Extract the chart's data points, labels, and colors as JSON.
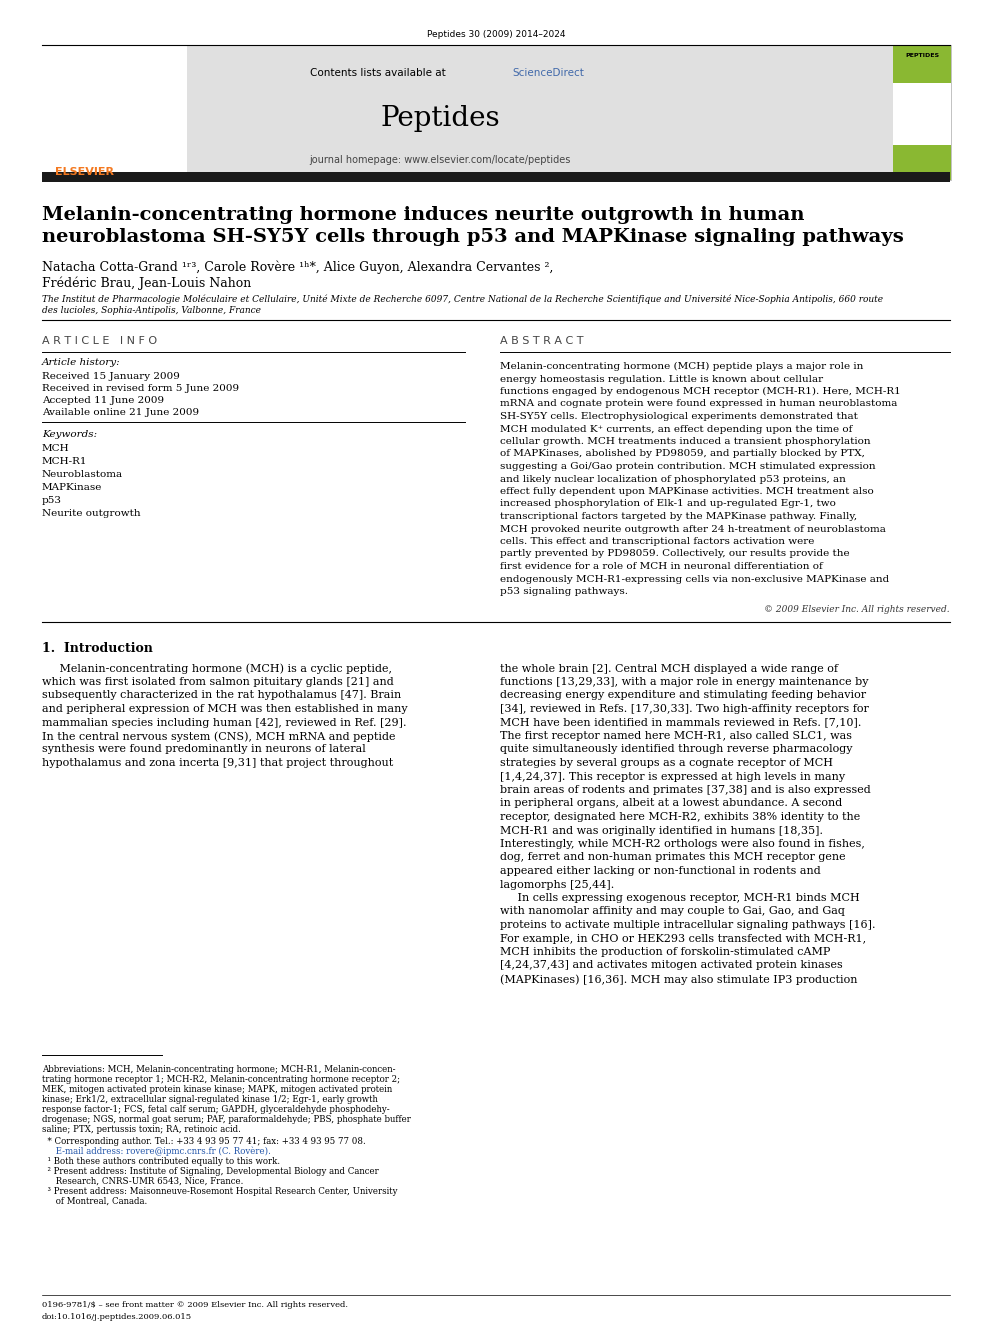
{
  "page_width": 9.92,
  "page_height": 13.23,
  "dpi": 100,
  "bg_color": "#ffffff",
  "top_journal_info": "Peptides 30 (2009) 2014–2024",
  "journal_name": "Peptides",
  "journal_homepage": "journal homepage: www.elsevier.com/locate/peptides",
  "contents_line": "Contents lists available at ",
  "sciencedirect_word": "ScienceDirect",
  "sciencedirect_color": "#4169aa",
  "title_line1": "Melanin-concentrating hormone induces neurite outgrowth in human",
  "title_line2": "neuroblastoma SH-SY5Y cells through p53 and MAPKinase signaling pathways",
  "authors_line1": "Natacha Cotta-Grand ¹ʳ³, Carole Rovère ¹ʰ*, Alice Guyon, Alexandra Cervantes ²,",
  "authors_line2": "Frédéric Brau, Jean-Louis Nahon",
  "affiliation_line1": "The Institut de Pharmacologie Moléculaire et Cellulaire, Unité Mixte de Recherche 6097, Centre National de la Recherche Scientifique and Université Nice-Sophia Antipolis, 660 route",
  "affiliation_line2": "des lucioles, Sophia-Antipolis, Valbonne, France",
  "article_info_header": "A R T I C L E   I N F O",
  "abstract_header": "A B S T R A C T",
  "article_history_label": "Article history:",
  "received1": "Received 15 January 2009",
  "received2": "Received in revised form 5 June 2009",
  "accepted": "Accepted 11 June 2009",
  "available": "Available online 21 June 2009",
  "keywords_label": "Keywords:",
  "keywords": [
    "MCH",
    "MCH-R1",
    "Neuroblastoma",
    "MAPKinase",
    "p53",
    "Neurite outgrowth"
  ],
  "abstract_text": "Melanin-concentrating hormone (MCH) peptide plays a major role in energy homeostasis regulation. Little is known about cellular functions engaged by endogenous MCH receptor (MCH-R1). Here, MCH-R1 mRNA and cognate protein were found expressed in human neuroblastoma SH-SY5Y cells. Electrophysiological experiments demonstrated that MCH modulated K⁺ currents, an effect depending upon the time of cellular growth. MCH treatments induced a transient phosphorylation of MAPKinases, abolished by PD98059, and partially blocked by PTX, suggesting a Goi/Gao protein contribution. MCH stimulated expression and likely nuclear localization of phosphorylated p53 proteins, an effect fully dependent upon MAPKinase activities. MCH treatment also increased phosphorylation of Elk-1 and up-regulated Egr-1, two transcriptional factors targeted by the MAPKinase pathway. Finally, MCH provoked neurite outgrowth after 24 h-treatment of neuroblastoma cells. This effect and transcriptional factors activation were partly prevented by PD98059. Collectively, our results provide the first evidence for a role of MCH in neuronal differentiation of endogenously MCH-R1-expressing cells via non-exclusive MAPKinase and p53 signaling pathways.",
  "copyright_line": "© 2009 Elsevier Inc. All rights reserved.",
  "intro_header": "1.  Introduction",
  "intro_col1_lines": [
    "     Melanin-concentrating hormone (MCH) is a cyclic peptide,",
    "which was first isolated from salmon pituitary glands [21] and",
    "subsequently characterized in the rat hypothalamus [47]. Brain",
    "and peripheral expression of MCH was then established in many",
    "mammalian species including human [42], reviewed in Ref. [29].",
    "In the central nervous system (CNS), MCH mRNA and peptide",
    "synthesis were found predominantly in neurons of lateral",
    "hypothalamus and zona incerta [9,31] that project throughout"
  ],
  "intro_col2_lines": [
    "the whole brain [2]. Central MCH displayed a wide range of",
    "functions [13,29,33], with a major role in energy maintenance by",
    "decreasing energy expenditure and stimulating feeding behavior",
    "[34], reviewed in Refs. [17,30,33]. Two high-affinity receptors for",
    "MCH have been identified in mammals reviewed in Refs. [7,10].",
    "The first receptor named here MCH-R1, also called SLC1, was",
    "quite simultaneously identified through reverse pharmacology",
    "strategies by several groups as a cognate receptor of MCH",
    "[1,4,24,37]. This receptor is expressed at high levels in many",
    "brain areas of rodents and primates [37,38] and is also expressed",
    "in peripheral organs, albeit at a lowest abundance. A second",
    "receptor, designated here MCH-R2, exhibits 38% identity to the",
    "MCH-R1 and was originally identified in humans [18,35].",
    "Interestingly, while MCH-R2 orthologs were also found in fishes,",
    "dog, ferret and non-human primates this MCH receptor gene",
    "appeared either lacking or non-functional in rodents and",
    "lagomorphs [25,44].",
    "     In cells expressing exogenous receptor, MCH-R1 binds MCH",
    "with nanomolar affinity and may couple to Gai, Gao, and Gaq",
    "proteins to activate multiple intracellular signaling pathways [16].",
    "For example, in CHO or HEK293 cells transfected with MCH-R1,",
    "MCH inhibits the production of forskolin-stimulated cAMP",
    "[4,24,37,43] and activates mitogen activated protein kinases",
    "(MAPKinases) [16,36]. MCH may also stimulate IP3 production"
  ],
  "footnote_abbrev_lines": [
    "Abbreviations: MCH, Melanin-concentrating hormone; MCH-R1, Melanin-concen-",
    "trating hormone receptor 1; MCH-R2, Melanin-concentrating hormone receptor 2;",
    "MEK, mitogen activated protein kinase kinase; MAPK, mitogen activated protein",
    "kinase; Erk1/2, extracellular signal-regulated kinase 1/2; Egr-1, early growth",
    "response factor-1; FCS, fetal calf serum; GAPDH, glyceraldehyde phosphodehy-",
    "drogenase; NGS, normal goat serum; PAF, paraformaldehyde; PBS, phosphate buffer",
    "saline; PTX, pertussis toxin; RA, retinoic acid."
  ],
  "footnote_star": "  * Corresponding author. Tel.: +33 4 93 95 77 41; fax: +33 4 93 95 77 08.",
  "footnote_email": "     E-mail address: rovere@ipmc.cnrs.fr (C. Rovère).",
  "footnote_dagger1": "  ¹ Both these authors contributed equally to this work.",
  "footnote_2": "  ² Present address: Institute of Signaling, Developmental Biology and Cancer",
  "footnote_2b": "     Research, CNRS-UMR 6543, Nice, France.",
  "footnote_3": "  ³ Present address: Maisonneuve-Rosemont Hospital Research Center, University",
  "footnote_3b": "     of Montreal, Canada.",
  "bottom_line1": "0196-9781/$ – see front matter © 2009 Elsevier Inc. All rights reserved.",
  "bottom_line2": "doi:10.1016/j.peptides.2009.06.015",
  "header_bar_color": "#1a1a1a",
  "elsevier_orange": "#f47920",
  "journal_bg": "#e0e0e0",
  "link_color": "#2255aa"
}
